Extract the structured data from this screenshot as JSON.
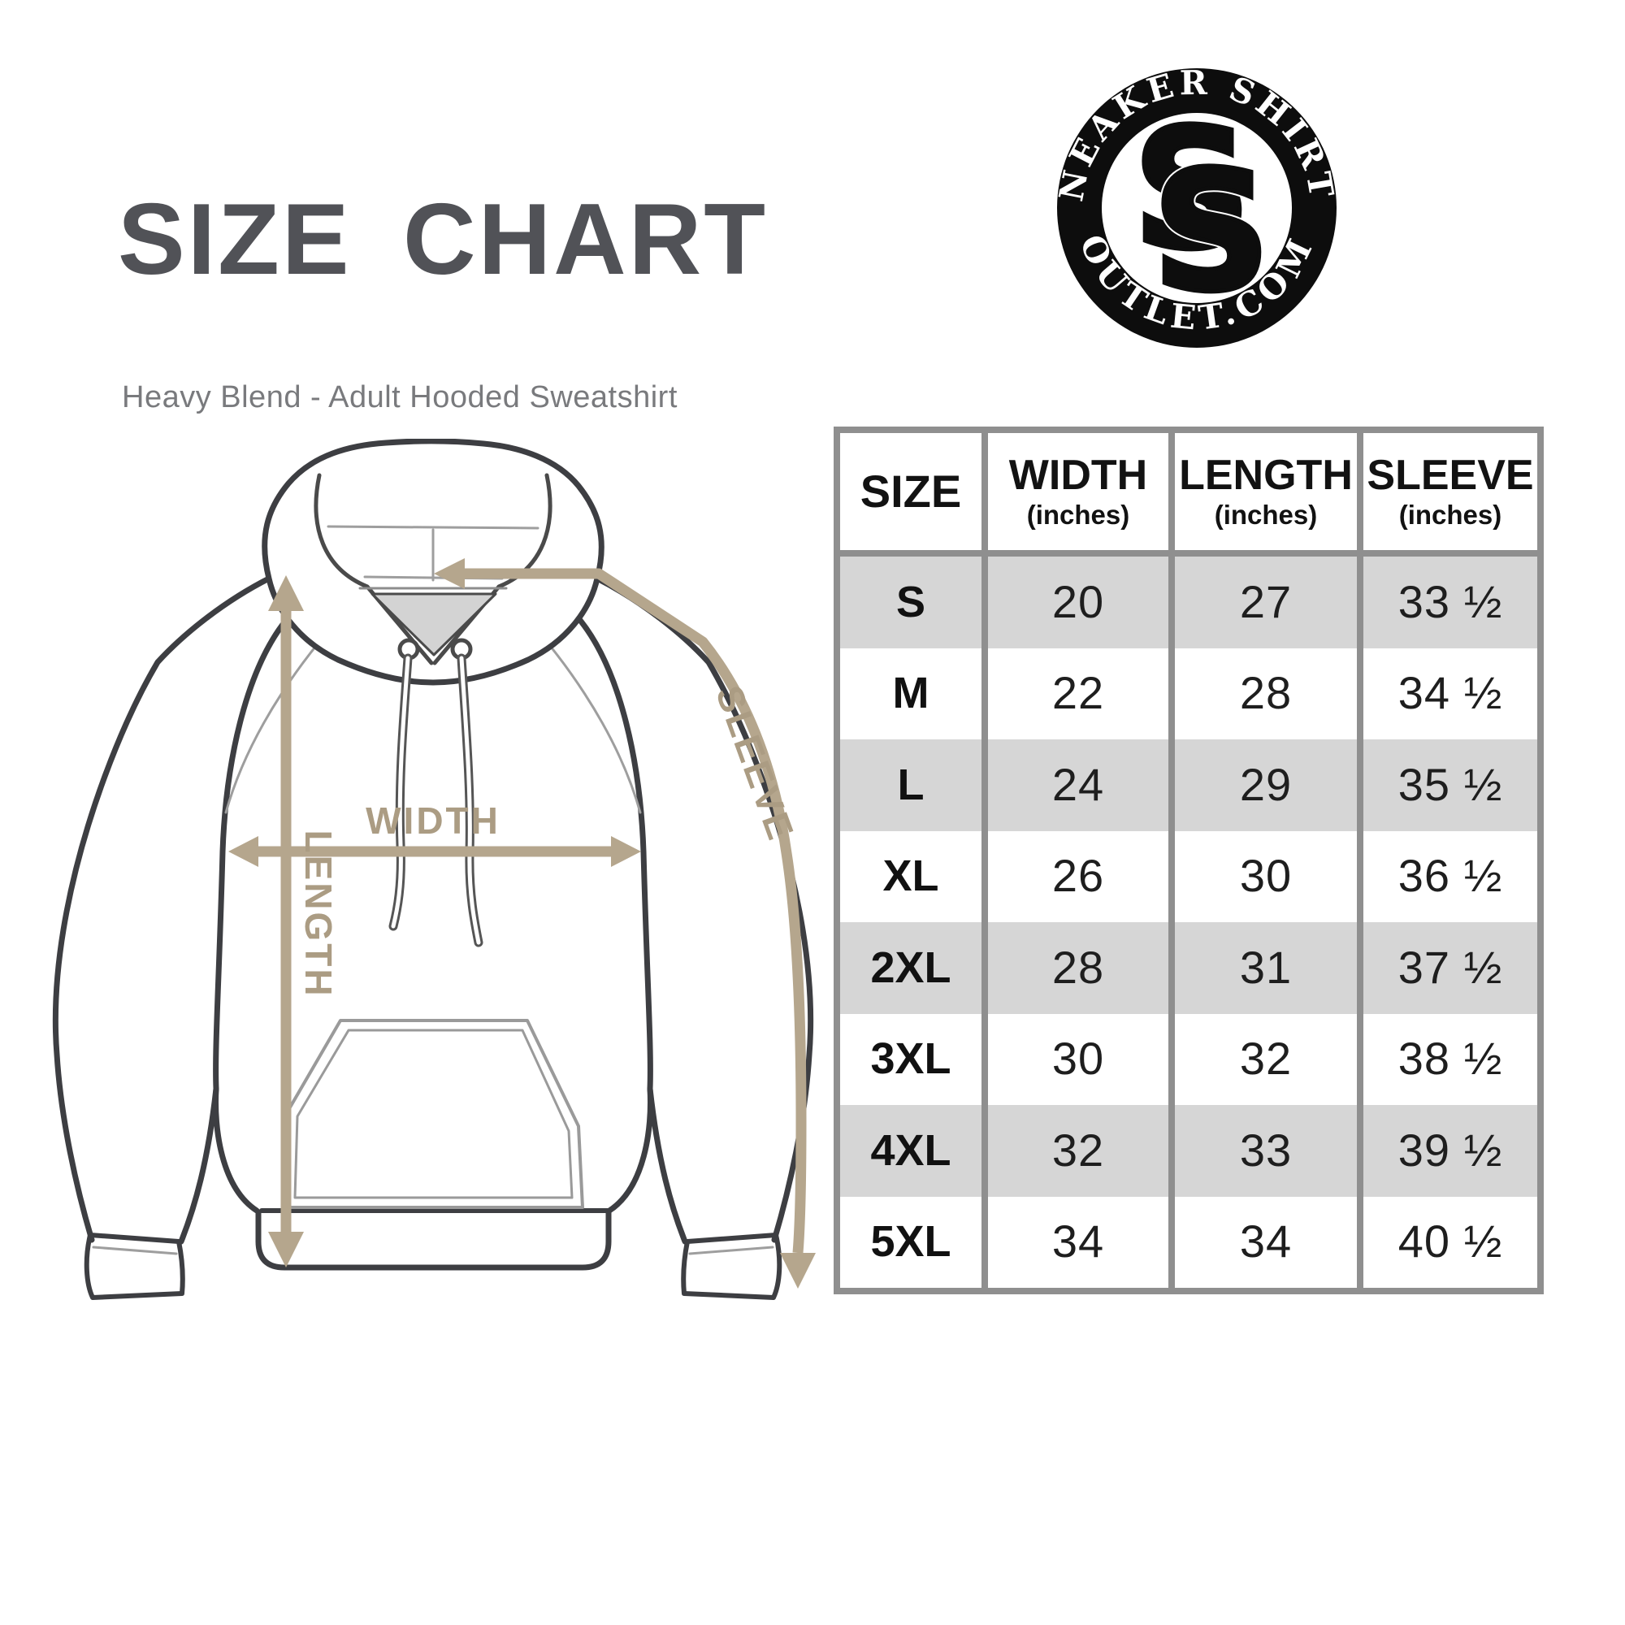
{
  "page": {
    "title": "SIZE CHART",
    "subtitle": "Heavy Blend - Adult Hooded Sweatshirt"
  },
  "logo": {
    "arc_top": "SNEAKER SHIRTS",
    "arc_bottom": "OUTLET.COM",
    "monogram_letter": "S"
  },
  "diagram": {
    "width_label": "WIDTH",
    "length_label": "LENGTH",
    "sleeve_label": "SLEEVE"
  },
  "table": {
    "headers": [
      {
        "label": "SIZE",
        "sub": ""
      },
      {
        "label": "WIDTH",
        "sub": "(inches)"
      },
      {
        "label": "LENGTH",
        "sub": "(inches)"
      },
      {
        "label": "SLEEVE",
        "sub": "(inches)"
      }
    ],
    "rows": [
      {
        "size": "S",
        "width": "20",
        "length": "27",
        "sleeve": "33 ½"
      },
      {
        "size": "M",
        "width": "22",
        "length": "28",
        "sleeve": "34 ½"
      },
      {
        "size": "L",
        "width": "24",
        "length": "29",
        "sleeve": "35 ½"
      },
      {
        "size": "XL",
        "width": "26",
        "length": "30",
        "sleeve": "36 ½"
      },
      {
        "size": "2XL",
        "width": "28",
        "length": "31",
        "sleeve": "37 ½"
      },
      {
        "size": "3XL",
        "width": "30",
        "length": "32",
        "sleeve": "38 ½"
      },
      {
        "size": "4XL",
        "width": "32",
        "length": "33",
        "sleeve": "39 ½"
      },
      {
        "size": "5XL",
        "width": "34",
        "length": "34",
        "sleeve": "40 ½"
      }
    ]
  },
  "chart_data": {
    "type": "table",
    "title": "SIZE CHART - Heavy Blend Adult Hooded Sweatshirt",
    "columns": [
      "SIZE",
      "WIDTH (inches)",
      "LENGTH (inches)",
      "SLEEVE (inches)"
    ],
    "rows": [
      [
        "S",
        20,
        27,
        33.5
      ],
      [
        "M",
        22,
        28,
        34.5
      ],
      [
        "L",
        24,
        29,
        35.5
      ],
      [
        "XL",
        26,
        30,
        36.5
      ],
      [
        "2XL",
        28,
        31,
        37.5
      ],
      [
        "3XL",
        30,
        32,
        38.5
      ],
      [
        "4XL",
        32,
        33,
        39.5
      ],
      [
        "5XL",
        34,
        34,
        40.5
      ]
    ]
  },
  "colors": {
    "accent_tan": "#b5a68d",
    "tan_label": "#ab9c83",
    "row_shaded": "#d6d6d6",
    "table_border": "#8f8f8f",
    "title_gray": "#515257",
    "subtitle_gray": "#797a7d",
    "outline_dark": "#3d3e42"
  }
}
